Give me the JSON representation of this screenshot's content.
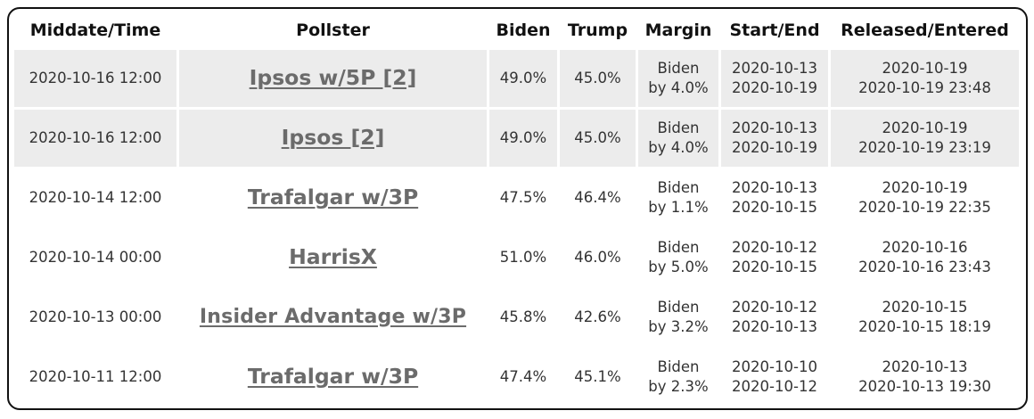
{
  "table": {
    "headers": [
      "Middate/Time",
      "Pollster",
      "Biden",
      "Trump",
      "Margin",
      "Start/End",
      "Released/Entered"
    ],
    "rows": [
      {
        "middate": "2020-10-16 12:00",
        "pollster": "Ipsos w/5P [2]",
        "biden": "49.0%",
        "trump": "45.0%",
        "margin_line1": "Biden",
        "margin_line2": "by 4.0%",
        "start": "2020-10-13",
        "end": "2020-10-19",
        "released": "2020-10-19",
        "entered": "2020-10-19 23:48",
        "shaded": true
      },
      {
        "middate": "2020-10-16 12:00",
        "pollster": "Ipsos [2]",
        "biden": "49.0%",
        "trump": "45.0%",
        "margin_line1": "Biden",
        "margin_line2": "by 4.0%",
        "start": "2020-10-13",
        "end": "2020-10-19",
        "released": "2020-10-19",
        "entered": "2020-10-19 23:19",
        "shaded": true
      },
      {
        "middate": "2020-10-14 12:00",
        "pollster": "Trafalgar w/3P",
        "biden": "47.5%",
        "trump": "46.4%",
        "margin_line1": "Biden",
        "margin_line2": "by 1.1%",
        "start": "2020-10-13",
        "end": "2020-10-15",
        "released": "2020-10-19",
        "entered": "2020-10-19 22:35",
        "shaded": false
      },
      {
        "middate": "2020-10-14 00:00",
        "pollster": "HarrisX",
        "biden": "51.0%",
        "trump": "46.0%",
        "margin_line1": "Biden",
        "margin_line2": "by 5.0%",
        "start": "2020-10-12",
        "end": "2020-10-15",
        "released": "2020-10-16",
        "entered": "2020-10-16 23:43",
        "shaded": false
      },
      {
        "middate": "2020-10-13 00:00",
        "pollster": "Insider Advantage w/3P",
        "biden": "45.8%",
        "trump": "42.6%",
        "margin_line1": "Biden",
        "margin_line2": "by 3.2%",
        "start": "2020-10-12",
        "end": "2020-10-13",
        "released": "2020-10-15",
        "entered": "2020-10-15 18:19",
        "shaded": false
      },
      {
        "middate": "2020-10-11 12:00",
        "pollster": "Trafalgar w/3P",
        "biden": "47.4%",
        "trump": "45.1%",
        "margin_line1": "Biden",
        "margin_line2": "by 2.3%",
        "start": "2020-10-10",
        "end": "2020-10-12",
        "released": "2020-10-13",
        "entered": "2020-10-13 19:30",
        "shaded": false
      }
    ]
  },
  "colors": {
    "shaded_row": "#ececec",
    "link": "#6b6b6b",
    "border": "#111111"
  }
}
